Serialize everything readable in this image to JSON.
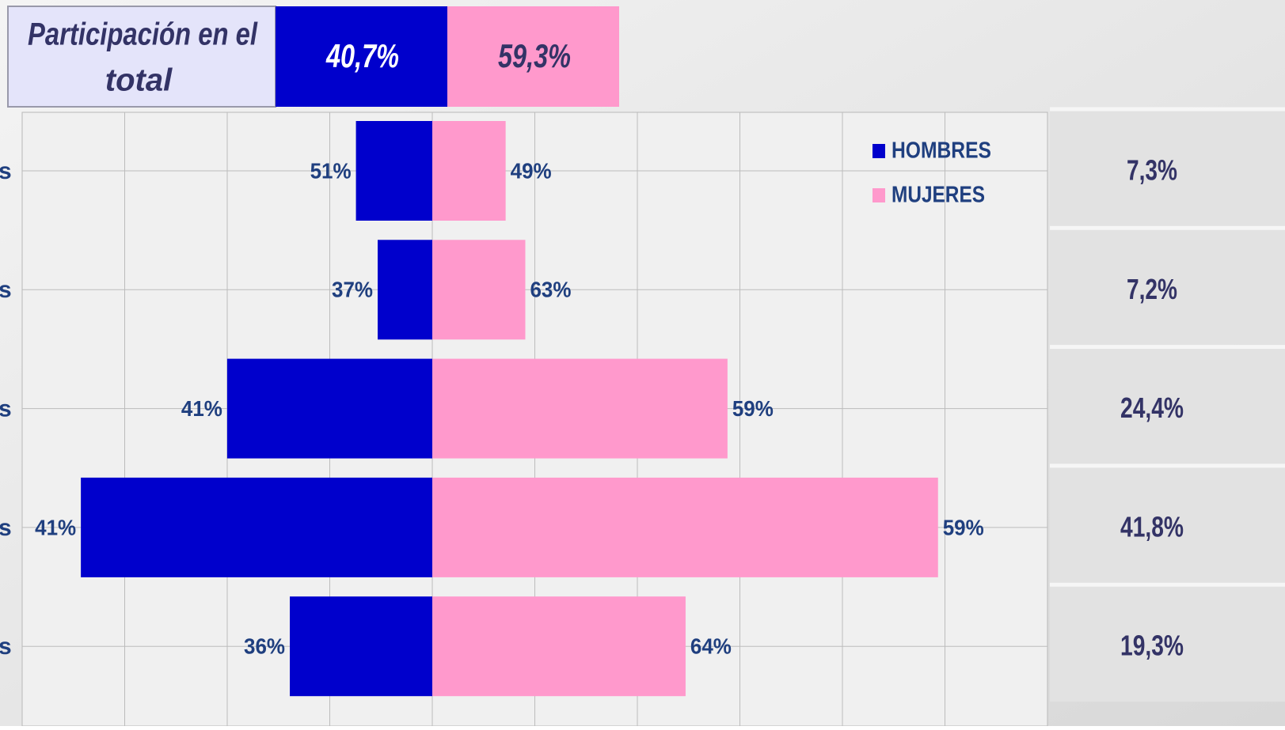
{
  "chart_data": {
    "type": "butterfly-bar",
    "header": {
      "title": "Participación en el total",
      "values": [
        40.7,
        59.3
      ],
      "value_labels": [
        "40,7%",
        "59,3%"
      ]
    },
    "categories": [
      "s",
      "s",
      "s",
      "s",
      "s"
    ],
    "series": [
      {
        "name": "HOMBRES",
        "color": "#0000cc",
        "values": [
          51,
          37,
          41,
          41,
          36
        ],
        "value_labels": [
          "51%",
          "37%",
          "41%",
          "41%",
          "36%"
        ]
      },
      {
        "name": "MUJERES",
        "color": "#ff99cc",
        "values": [
          49,
          63,
          59,
          59,
          64
        ],
        "value_labels": [
          "49%",
          "63%",
          "59%",
          "59%",
          "64%"
        ]
      }
    ],
    "shares": {
      "values": [
        7.3,
        7.2,
        24.4,
        41.8,
        19.3
      ],
      "value_labels": [
        "7,3%",
        "7,2%",
        "24,4%",
        "41,8%",
        "19,3%"
      ]
    },
    "grid": true
  }
}
